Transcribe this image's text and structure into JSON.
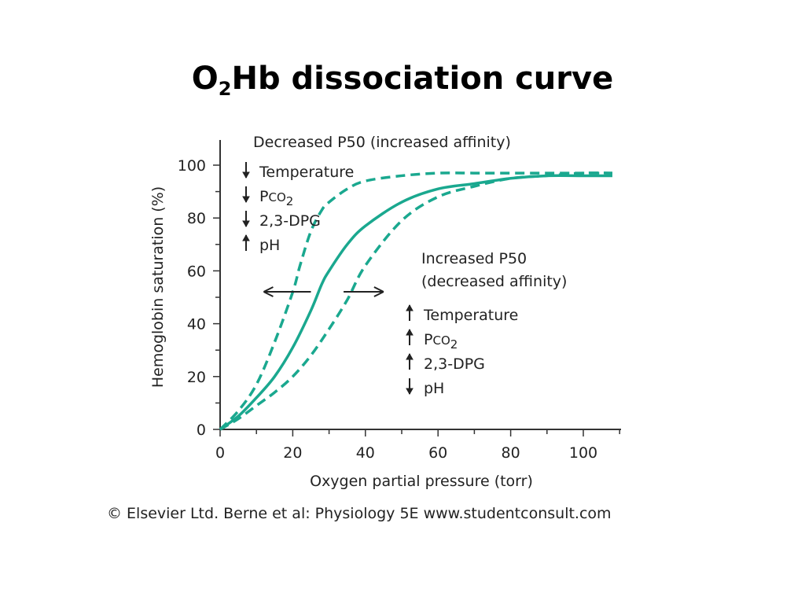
{
  "slide": {
    "title_main": "O",
    "title_sub": "2",
    "title_rest": "Hb dissociation curve"
  },
  "credit": "© Elsevier Ltd. Berne et al: Physiology 5E www.studentconsult.com",
  "colors": {
    "curve": "#1aa88f",
    "axis": "#333333",
    "text": "#222222"
  },
  "annotations": {
    "left_title": "Decreased P50 (increased affinity)",
    "left_items": [
      {
        "arrow": "down",
        "label": "Temperature"
      },
      {
        "arrow": "down",
        "label_main": "P",
        "label_sub": "CO",
        "label_sub2": "2"
      },
      {
        "arrow": "down",
        "label": "2,3-DPG"
      },
      {
        "arrow": "up",
        "label": "pH"
      }
    ],
    "right_title_1": "Increased P50",
    "right_title_2": "(decreased affinity)",
    "right_items": [
      {
        "arrow": "up",
        "label": "Temperature"
      },
      {
        "arrow": "up",
        "label_main": "P",
        "label_sub": "CO",
        "label_sub2": "2"
      },
      {
        "arrow": "up",
        "label": "2,3-DPG"
      },
      {
        "arrow": "down",
        "label": "pH"
      }
    ]
  },
  "chart_data": {
    "type": "line",
    "xlabel": "Oxygen partial pressure (torr)",
    "ylabel": "Hemoglobin saturation (%)",
    "xlim": [
      0,
      110
    ],
    "ylim": [
      0,
      110
    ],
    "xticks": [
      0,
      20,
      40,
      60,
      80,
      100
    ],
    "yticks": [
      0,
      20,
      40,
      60,
      80,
      100
    ],
    "grid": false,
    "series": [
      {
        "style": "dashed",
        "x": [
          0,
          5,
          10,
          15,
          20,
          22,
          25,
          28,
          30,
          35,
          40,
          50,
          60,
          70,
          80,
          90,
          100,
          108
        ],
        "y": [
          0,
          7,
          17,
          33,
          52,
          62,
          75,
          83,
          86,
          91,
          94,
          96,
          97,
          97,
          97,
          97,
          97,
          97
        ]
      },
      {
        "style": "solid",
        "x": [
          0,
          5,
          10,
          15,
          20,
          25,
          28,
          30,
          35,
          40,
          50,
          60,
          70,
          80,
          90,
          100,
          108
        ],
        "y": [
          0,
          5,
          12,
          20,
          31,
          45,
          55,
          60,
          70,
          77,
          86,
          91,
          93,
          95,
          96,
          96,
          96
        ]
      },
      {
        "style": "dashed",
        "x": [
          0,
          5,
          10,
          15,
          20,
          25,
          30,
          35,
          40,
          50,
          60,
          70,
          80,
          90,
          100,
          108
        ],
        "y": [
          0,
          4,
          9,
          14,
          20,
          28,
          38,
          49,
          62,
          79,
          88,
          92,
          95,
          96,
          97,
          97
        ]
      }
    ],
    "shift_arrows": [
      {
        "direction": "left",
        "y": 50,
        "x_from": 25,
        "x_to": 12
      },
      {
        "direction": "right",
        "y": 50,
        "x_from": 34,
        "x_to": 45
      }
    ]
  }
}
